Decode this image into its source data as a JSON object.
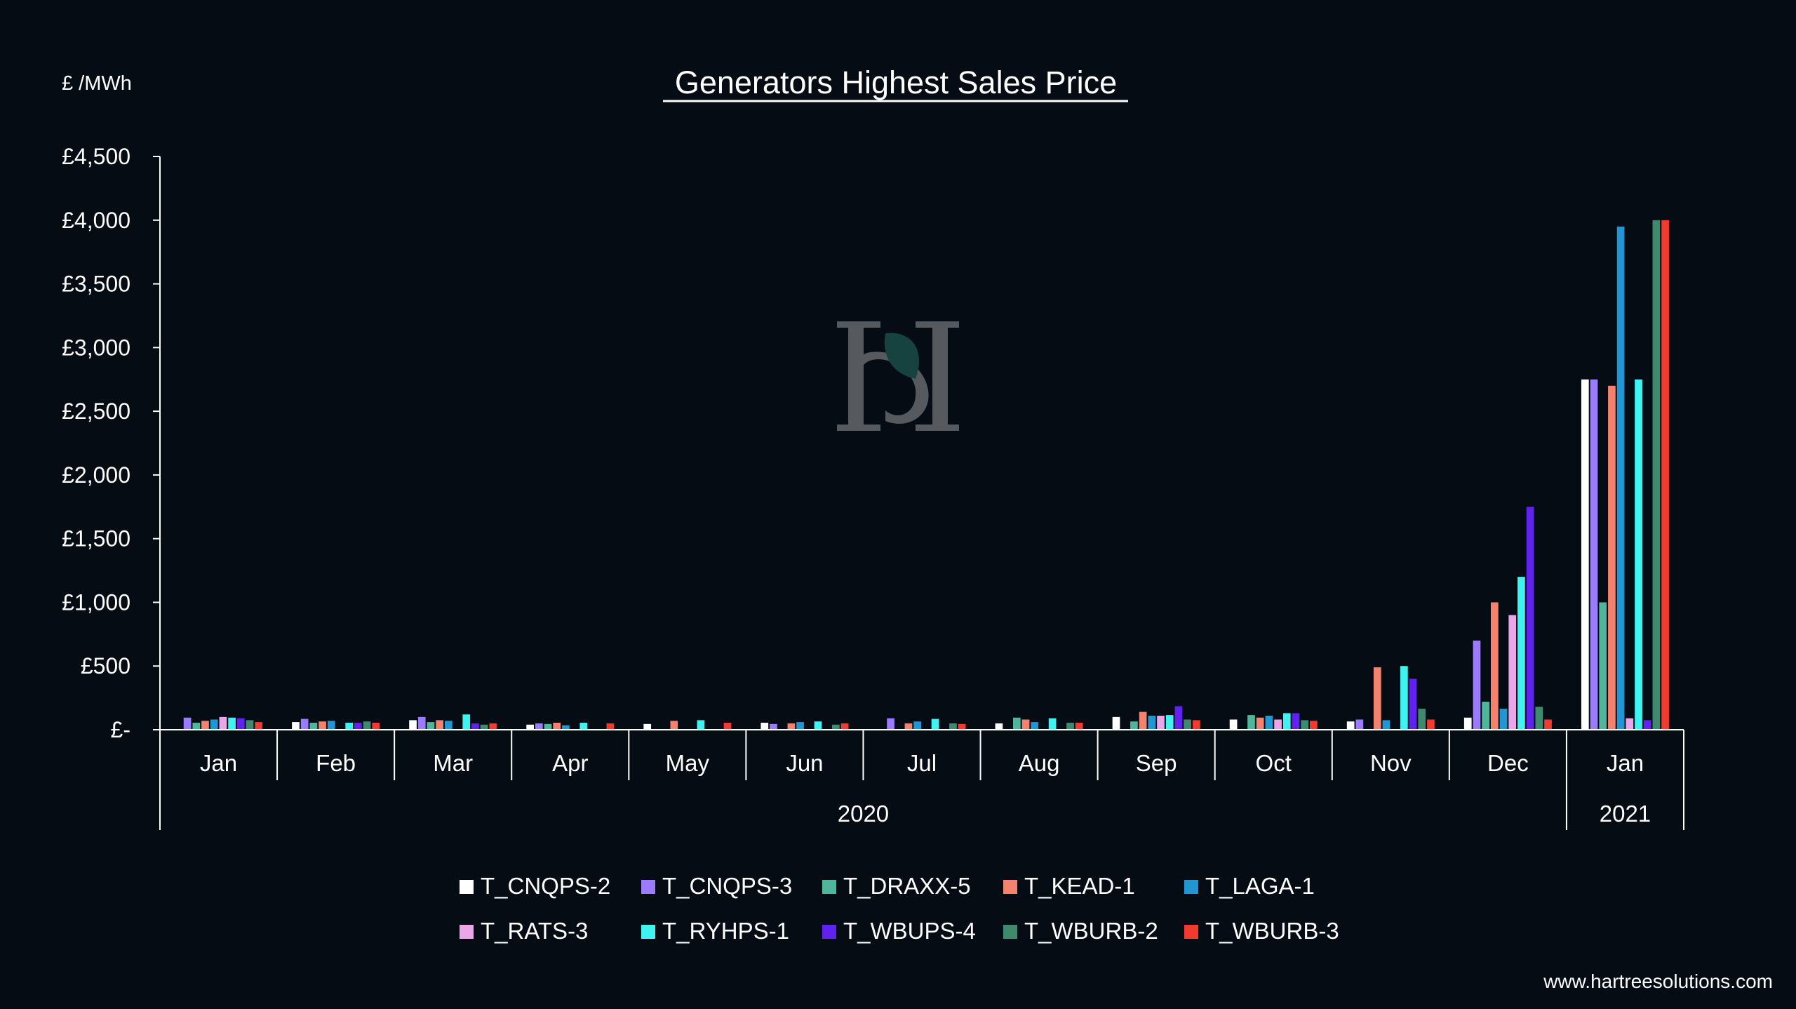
{
  "chart_data": {
    "type": "bar",
    "title": "Generators Highest Sales Price",
    "ylabel": "£ /MWh",
    "xlabel": "",
    "ylim": [
      0,
      4500
    ],
    "yticks": [
      {
        "value": 0,
        "label": "£-"
      },
      {
        "value": 500,
        "label": "£500"
      },
      {
        "value": 1000,
        "label": "£1,000"
      },
      {
        "value": 1500,
        "label": "£1,500"
      },
      {
        "value": 2000,
        "label": "£2,000"
      },
      {
        "value": 2500,
        "label": "£2,500"
      },
      {
        "value": 3000,
        "label": "£3,000"
      },
      {
        "value": 3500,
        "label": "£3,500"
      },
      {
        "value": 4000,
        "label": "£4,000"
      },
      {
        "value": 4500,
        "label": "£4,500"
      }
    ],
    "categories": [
      "Jan",
      "Feb",
      "Mar",
      "Apr",
      "May",
      "Jun",
      "Jul",
      "Aug",
      "Sep",
      "Oct",
      "Nov",
      "Dec",
      "Jan"
    ],
    "year_groups": [
      {
        "label": "2020",
        "start": 0,
        "end": 11
      },
      {
        "label": "2021",
        "start": 12,
        "end": 12
      }
    ],
    "grid": false,
    "legend_position": "bottom",
    "series": [
      {
        "name": "T_CNQPS-2",
        "color": "#ffffff",
        "values": [
          0,
          60,
          75,
          40,
          45,
          55,
          0,
          50,
          100,
          80,
          65,
          95,
          2750
        ]
      },
      {
        "name": "T_CNQPS-3",
        "color": "#9b7bff",
        "values": [
          95,
          85,
          100,
          50,
          0,
          45,
          90,
          0,
          0,
          0,
          80,
          700,
          2750
        ]
      },
      {
        "name": "T_DRAXX-5",
        "color": "#4fb59b",
        "values": [
          55,
          55,
          60,
          45,
          0,
          0,
          0,
          95,
          65,
          115,
          0,
          220,
          1000
        ]
      },
      {
        "name": "T_KEAD-1",
        "color": "#f4826f",
        "values": [
          70,
          65,
          75,
          55,
          70,
          50,
          50,
          80,
          140,
          95,
          490,
          1000,
          2700
        ]
      },
      {
        "name": "T_LAGA-1",
        "color": "#2196d3",
        "values": [
          80,
          70,
          70,
          35,
          0,
          60,
          65,
          60,
          110,
          110,
          75,
          165,
          3950
        ]
      },
      {
        "name": "T_RATS-3",
        "color": "#e9a6e8",
        "values": [
          100,
          0,
          0,
          0,
          0,
          0,
          0,
          0,
          110,
          80,
          0,
          900,
          90
        ]
      },
      {
        "name": "T_RYHPS-1",
        "color": "#3ff3f0",
        "values": [
          95,
          55,
          120,
          55,
          75,
          65,
          85,
          90,
          115,
          130,
          500,
          1200,
          2750
        ]
      },
      {
        "name": "T_WBUPS-4",
        "color": "#6022ee",
        "values": [
          90,
          55,
          50,
          0,
          0,
          0,
          0,
          0,
          185,
          130,
          400,
          1750,
          75
        ]
      },
      {
        "name": "T_WBURB-2",
        "color": "#3d8a6e",
        "values": [
          75,
          65,
          40,
          0,
          0,
          40,
          50,
          55,
          80,
          75,
          165,
          180,
          4000
        ]
      },
      {
        "name": "T_WBURB-3",
        "color": "#f23a2e",
        "values": [
          60,
          55,
          50,
          50,
          55,
          50,
          45,
          55,
          75,
          70,
          80,
          80,
          4000
        ]
      }
    ]
  },
  "watermark": {
    "logo_icon": "hs-leaf-logo-icon"
  },
  "footer": {
    "website": "www.hartreesolutions.com"
  }
}
